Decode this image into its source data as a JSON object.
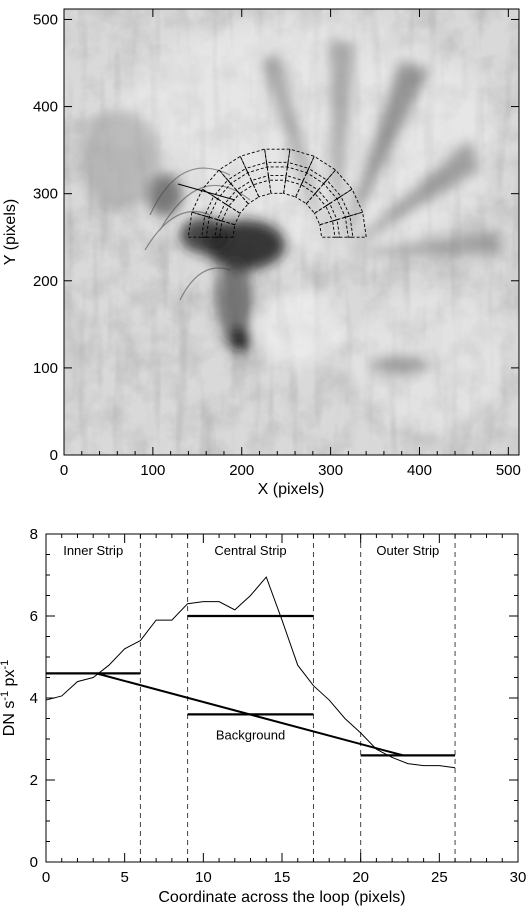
{
  "chart_data": [
    {
      "type": "image",
      "xlabel": "X (pixels)",
      "ylabel": "Y (pixels)",
      "xlim": [
        0,
        512
      ],
      "ylim": [
        0,
        512
      ],
      "xticks": [
        0,
        100,
        200,
        300,
        400,
        500
      ],
      "yticks": [
        0,
        100,
        200,
        300,
        400,
        500
      ],
      "colormap": "inverted grayscale",
      "overlay": {
        "shape": "semicircular loop with three concentric strips of boxes",
        "center": [
          240,
          250
        ],
        "radii": [
          60,
          75,
          90
        ],
        "boxes_per_strip": 11
      }
    },
    {
      "type": "line",
      "xlabel": "Coordinate across the loop (pixels)",
      "ylabel_main": "DN s",
      "ylabel_sup1": "-1",
      "ylabel_mid": " px",
      "ylabel_sup2": "-1",
      "xlim": [
        0,
        30
      ],
      "ylim": [
        0,
        8
      ],
      "xticks": [
        0,
        5,
        10,
        15,
        20,
        25,
        30
      ],
      "yticks": [
        0,
        2,
        4,
        6,
        8
      ],
      "profile": {
        "x": [
          0,
          1,
          2,
          3,
          4,
          5,
          6,
          7,
          8,
          9,
          10,
          11,
          12,
          13,
          14,
          15,
          16,
          17,
          18,
          19,
          20,
          21,
          22,
          23,
          24,
          25,
          26
        ],
        "y": [
          3.95,
          4.05,
          4.4,
          4.5,
          4.8,
          5.2,
          5.4,
          5.9,
          5.9,
          6.3,
          6.35,
          6.35,
          6.15,
          6.5,
          6.95,
          5.9,
          4.8,
          4.3,
          3.95,
          3.5,
          3.15,
          2.75,
          2.55,
          2.4,
          2.35,
          2.35,
          2.3
        ]
      },
      "strip_boundaries": [
        6,
        9,
        17,
        20,
        26
      ],
      "strips": [
        {
          "label": "Inner Strip",
          "x0": 0,
          "x1": 6,
          "level": 4.6
        },
        {
          "label": "Central Strip",
          "x0": 9,
          "x1": 17,
          "level": 6.0
        },
        {
          "label": "Outer Strip",
          "x0": 20,
          "x1": 26,
          "level": 2.6
        }
      ],
      "central_background": {
        "x0": 9,
        "x1": 17,
        "level": 3.6
      },
      "background_line": {
        "x": [
          3.2,
          22.7
        ],
        "y": [
          4.6,
          2.6
        ]
      },
      "background_label": "Background",
      "colors": {
        "profile": "#000000",
        "levels": "#000000",
        "dashed": "#444444"
      }
    }
  ]
}
